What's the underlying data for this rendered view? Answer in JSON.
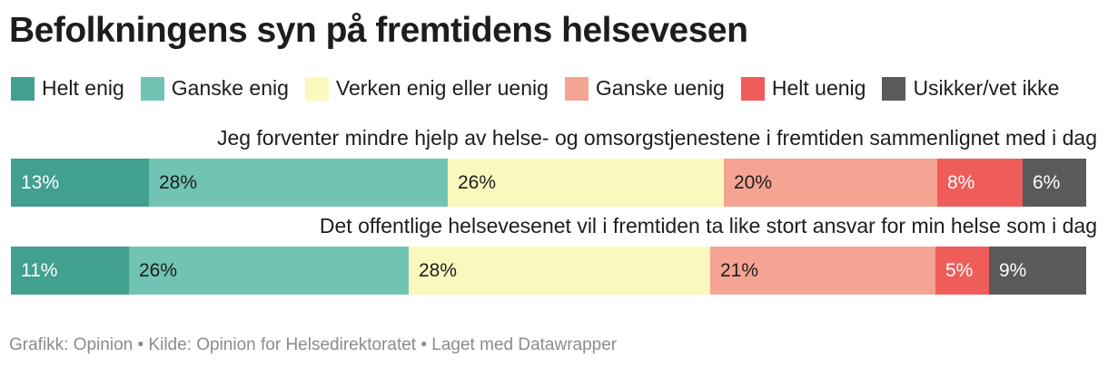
{
  "title": "Befolkningens syn på fremtidens helsevesen",
  "footer": "Grafikk: Opinion • Kilde: Opinion for Helsedirektoratet • Laget med Datawrapper",
  "chart_data": {
    "type": "bar",
    "orientation": "horizontal",
    "stacked": true,
    "normalized": true,
    "title": "Befolkningens syn på fremtidens helsevesen",
    "categories": [
      "Jeg forventer mindre hjelp av helse- og omsorgstjenestene i fremtiden sammenlignet med i dag",
      "Det offentlige helsevesenet vil i fremtiden ta like stort ansvar for min helse som i dag"
    ],
    "series": [
      {
        "name": "Helt enig",
        "color": "#41a08f",
        "text_color": "#ffffff",
        "values": [
          13,
          11
        ],
        "labels": [
          "13%",
          "11%"
        ]
      },
      {
        "name": "Ganske enig",
        "color": "#71c4b4",
        "text_color": "#1d1d1d",
        "values": [
          28,
          26
        ],
        "labels": [
          "28%",
          "26%"
        ]
      },
      {
        "name": "Verken enig eller uenig",
        "color": "#fbf8bd",
        "text_color": "#1d1d1d",
        "values": [
          26,
          28
        ],
        "labels": [
          "26%",
          "28%"
        ]
      },
      {
        "name": "Ganske uenig",
        "color": "#f5a392",
        "text_color": "#1d1d1d",
        "values": [
          20,
          21
        ],
        "labels": [
          "20%",
          "21%"
        ]
      },
      {
        "name": "Helt uenig",
        "color": "#ef5d5b",
        "text_color": "#ffffff",
        "values": [
          8,
          5
        ],
        "labels": [
          "8%",
          "5%"
        ]
      },
      {
        "name": "Usikker/vet ikke",
        "color": "#5a5a5a",
        "text_color": "#ffffff",
        "values": [
          6,
          9
        ],
        "labels": [
          "6%",
          "9%"
        ]
      }
    ],
    "legend_position": "top",
    "grid": false
  }
}
